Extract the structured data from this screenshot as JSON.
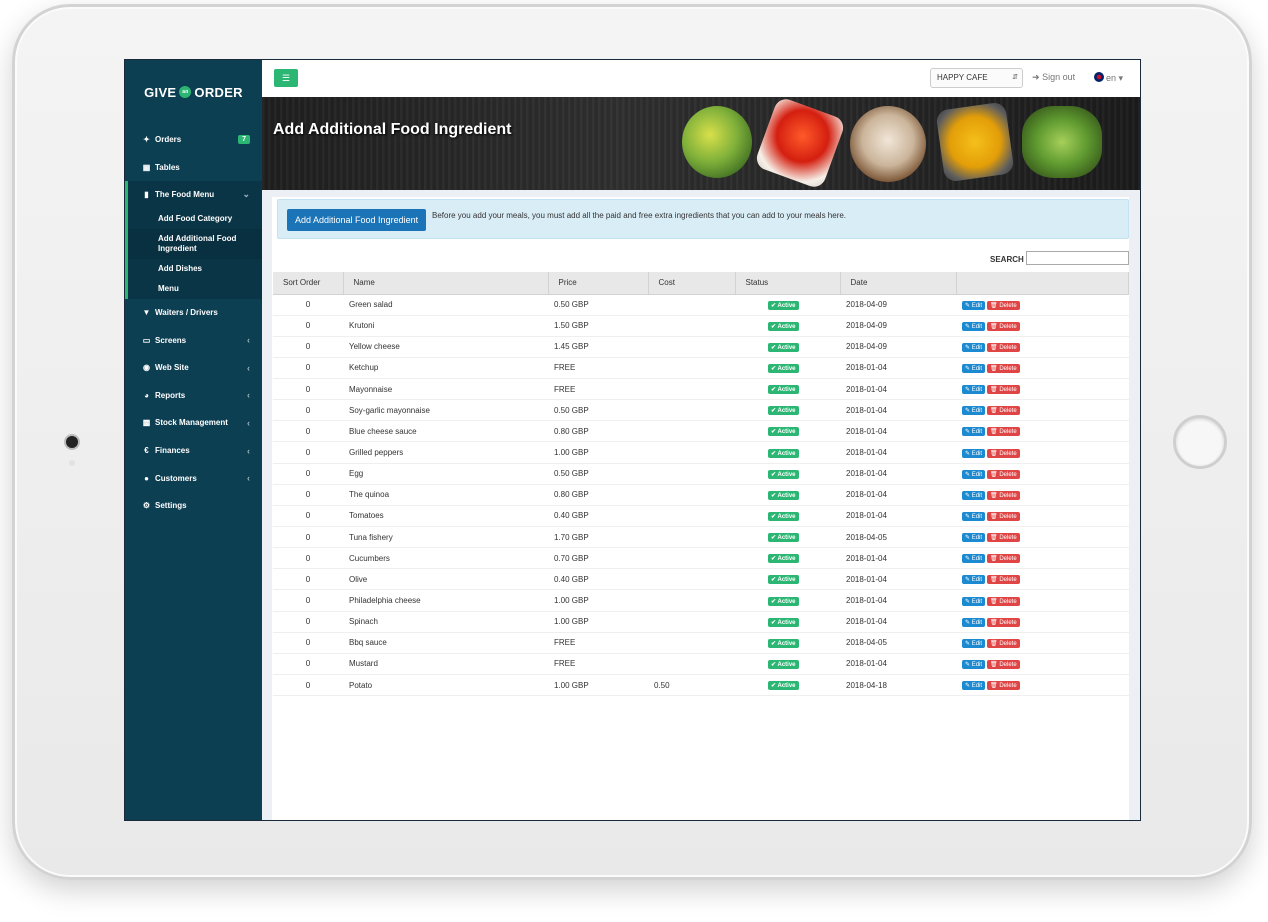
{
  "app": {
    "logo_left": "GIVE",
    "logo_mid": "an",
    "logo_right": "ORDER"
  },
  "sidebar": {
    "items": [
      {
        "label": "Orders",
        "icon": "cutlery-icon",
        "badge": "7"
      },
      {
        "label": "Tables",
        "icon": "grid-icon"
      },
      {
        "label": "The Food Menu",
        "icon": "file-icon"
      },
      {
        "label": "Waiters / Drivers",
        "icon": "glass-icon"
      },
      {
        "label": "Screens",
        "icon": "monitor-icon"
      },
      {
        "label": "Web Site",
        "icon": "globe-icon"
      },
      {
        "label": "Reports",
        "icon": "pie-chart-icon"
      },
      {
        "label": "Stock Management",
        "icon": "bar-chart-icon"
      },
      {
        "label": "Finances",
        "icon": "money-icon"
      },
      {
        "label": "Customers",
        "icon": "users-icon"
      },
      {
        "label": "Settings",
        "icon": "gear-icon"
      }
    ],
    "submenu": [
      {
        "label": "Add Food Category"
      },
      {
        "label": "Add Additional Food Ingredient"
      },
      {
        "label": "Add Dishes"
      },
      {
        "label": "Menu"
      }
    ]
  },
  "topbar": {
    "cafe": "HAPPY CAFE",
    "signout": "Sign out",
    "lang": "en"
  },
  "banner": {
    "title": "Add Additional Food Ingredient"
  },
  "info": {
    "button": "Add Additional Food Ingredient",
    "text": "Before you add your meals, you must add all the paid and free extra ingredients that you can add to your meals here."
  },
  "search": {
    "label": "SEARCH"
  },
  "table": {
    "headers": [
      "Sort Order",
      "Name",
      "Price",
      "Cost",
      "Status",
      "Date",
      ""
    ],
    "status_label": "Active",
    "edit_label": "Edit",
    "delete_label": "Delete",
    "rows": [
      {
        "sort": "0",
        "name": "Green salad",
        "price": "0.50 GBP",
        "cost": "",
        "date": "2018-04-09"
      },
      {
        "sort": "0",
        "name": "Krutoni",
        "price": "1.50 GBP",
        "cost": "",
        "date": "2018-04-09"
      },
      {
        "sort": "0",
        "name": "Yellow cheese",
        "price": "1.45 GBP",
        "cost": "",
        "date": "2018-04-09"
      },
      {
        "sort": "0",
        "name": "Ketchup",
        "price": "FREE",
        "cost": "",
        "date": "2018-01-04"
      },
      {
        "sort": "0",
        "name": "Mayonnaise",
        "price": "FREE",
        "cost": "",
        "date": "2018-01-04"
      },
      {
        "sort": "0",
        "name": "Soy-garlic mayonnaise",
        "price": "0.50 GBP",
        "cost": "",
        "date": "2018-01-04"
      },
      {
        "sort": "0",
        "name": "Blue cheese sauce",
        "price": "0.80 GBP",
        "cost": "",
        "date": "2018-01-04"
      },
      {
        "sort": "0",
        "name": "Grilled peppers",
        "price": "1.00 GBP",
        "cost": "",
        "date": "2018-01-04"
      },
      {
        "sort": "0",
        "name": "Egg",
        "price": "0.50 GBP",
        "cost": "",
        "date": "2018-01-04"
      },
      {
        "sort": "0",
        "name": "The quinoa",
        "price": "0.80 GBP",
        "cost": "",
        "date": "2018-01-04"
      },
      {
        "sort": "0",
        "name": "Tomatoes",
        "price": "0.40 GBP",
        "cost": "",
        "date": "2018-01-04"
      },
      {
        "sort": "0",
        "name": "Tuna fishery",
        "price": "1.70 GBP",
        "cost": "",
        "date": "2018-04-05"
      },
      {
        "sort": "0",
        "name": "Cucumbers",
        "price": "0.70 GBP",
        "cost": "",
        "date": "2018-01-04"
      },
      {
        "sort": "0",
        "name": "Olive",
        "price": "0.40 GBP",
        "cost": "",
        "date": "2018-01-04"
      },
      {
        "sort": "0",
        "name": "Philadelphia cheese",
        "price": "1.00 GBP",
        "cost": "",
        "date": "2018-01-04"
      },
      {
        "sort": "0",
        "name": "Spinach",
        "price": "1.00 GBP",
        "cost": "",
        "date": "2018-01-04"
      },
      {
        "sort": "0",
        "name": "Bbq sauce",
        "price": "FREE",
        "cost": "",
        "date": "2018-04-05"
      },
      {
        "sort": "0",
        "name": "Mustard",
        "price": "FREE",
        "cost": "",
        "date": "2018-01-04"
      },
      {
        "sort": "0",
        "name": "Potato",
        "price": "1.00 GBP",
        "cost": "0.50",
        "date": "2018-04-18"
      }
    ]
  },
  "colors": {
    "sidebar": "#0d3f52",
    "accent": "#2bb673",
    "primary": "#1b74b8",
    "danger": "#e04545"
  }
}
